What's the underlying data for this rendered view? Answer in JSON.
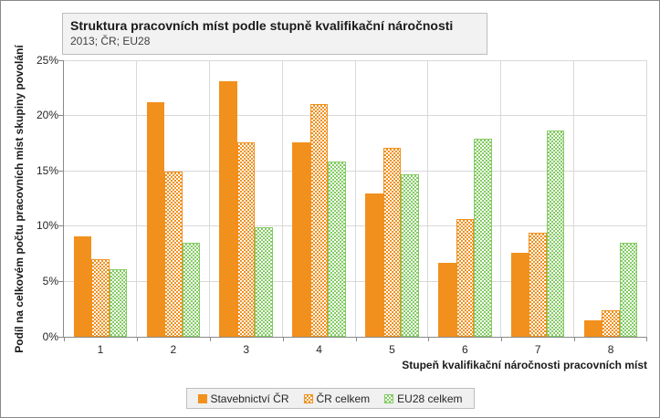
{
  "window": {
    "background": "#FFFFFF",
    "border_color": "#8A8A8A"
  },
  "colors": {
    "grid": "#D9D9D9",
    "axis": "#898989",
    "title_box_bg": "#F2F2F2",
    "title_box_border": "#BDBDBD",
    "legend_bg": "#F0F0F0",
    "orange": "#F1901D",
    "green": "#83CB63"
  },
  "chart_data": {
    "type": "bar",
    "title": "Struktura pracovních míst podle stupně kvalifikační náročnosti",
    "subtitle": "2013; ČR; EU28",
    "xlabel": "Stupeň kvalifikační náročnosti pracovních míst",
    "ylabel": "Podíl na celkovém počtu pracovních míst skupiny povolání",
    "categories": [
      "1",
      "2",
      "3",
      "4",
      "5",
      "6",
      "7",
      "8"
    ],
    "series": [
      {
        "name": "Stavebnictví ČR",
        "pattern": "solid",
        "color": "#F1901D",
        "values": [
          9.1,
          21.3,
          23.2,
          17.6,
          13.0,
          6.7,
          7.6,
          1.5
        ]
      },
      {
        "name": "ČR celkem",
        "pattern": "checker",
        "color": "#F1901D",
        "values": [
          7.0,
          15.0,
          17.6,
          21.1,
          17.1,
          10.7,
          9.4,
          2.4
        ]
      },
      {
        "name": "EU28 celkem",
        "pattern": "checker",
        "color": "#83CB63",
        "values": [
          6.1,
          8.5,
          9.9,
          15.9,
          14.7,
          18.0,
          18.7,
          8.5
        ]
      }
    ],
    "ylim": [
      0,
      25
    ],
    "ytick_step": 5,
    "ytick_suffix": "%",
    "grid": true,
    "legend_position": "bottom"
  }
}
